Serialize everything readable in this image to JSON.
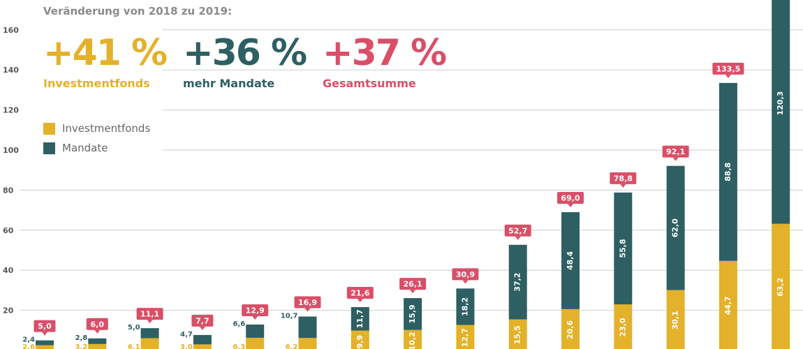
{
  "colors": {
    "investment": "#e3b12a",
    "mandate": "#2e5f62",
    "total": "#d94f68",
    "grid": "#cfcfcf",
    "axis_text": "#555555"
  },
  "header": {
    "subtitle": "Veränderung von 2018 zu 2019:",
    "kpis": [
      {
        "value": "+41 %",
        "label": "Investmentfonds",
        "color": "#e3b12a"
      },
      {
        "value": "+36 %",
        "label": "mehr Mandate",
        "color": "#2e5f62"
      },
      {
        "value": "+37 %",
        "label": "Gesamtsumme",
        "color": "#d94f68"
      }
    ]
  },
  "legend": [
    {
      "label": "Investmentfonds",
      "color": "#e3b12a"
    },
    {
      "label": "Mandate",
      "color": "#2e5f62"
    }
  ],
  "chart_data": {
    "type": "bar",
    "stacked": true,
    "ylim": [
      0,
      175
    ],
    "yticks": [
      20,
      40,
      60,
      80,
      100,
      120,
      140,
      160
    ],
    "grid": true,
    "legend_position": "top-left",
    "series": [
      {
        "name": "Investmentfonds",
        "values": [
          2.6,
          3.2,
          6.1,
          3.0,
          6.3,
          6.2,
          9.9,
          10.2,
          12.7,
          15.5,
          20.6,
          23.0,
          30.1,
          44.7,
          63.2
        ]
      },
      {
        "name": "Mandate",
        "values": [
          2.4,
          2.8,
          5.0,
          4.7,
          6.6,
          10.7,
          11.7,
          15.9,
          18.2,
          37.2,
          48.4,
          55.8,
          62.0,
          88.8,
          120.3
        ]
      }
    ],
    "totals": [
      5.0,
      6.0,
      11.1,
      7.7,
      12.9,
      16.9,
      21.6,
      26.1,
      30.9,
      52.7,
      69.0,
      78.8,
      92.1,
      133.5,
      null
    ],
    "mandate_label_inside": [
      false,
      false,
      false,
      false,
      false,
      false,
      true,
      true,
      true,
      true,
      true,
      true,
      true,
      true,
      true
    ],
    "invest_label_inside": [
      false,
      false,
      false,
      false,
      false,
      false,
      true,
      true,
      true,
      true,
      true,
      true,
      true,
      true,
      true
    ]
  }
}
